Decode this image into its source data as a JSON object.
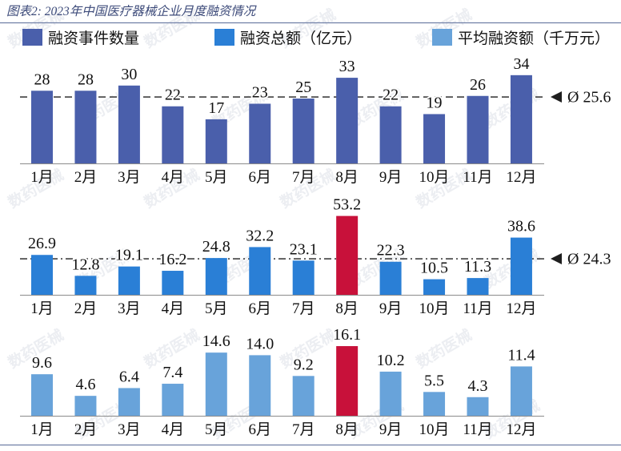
{
  "title": "图表2: 2023年中国医疗器械企业月度融资情况",
  "watermark": "数药医械",
  "legend_position": "top",
  "grid": false,
  "colors": {
    "title": "#3d4b7a",
    "divider": "#6f7fa6",
    "axis": "#8c8c8c",
    "average_line": "#1e1e1e",
    "watermark": "#eceef2"
  },
  "chart_data": [
    {
      "type": "bar",
      "name": "融资事件数量",
      "color": "#4a5fab",
      "categories": [
        "1月",
        "2月",
        "3月",
        "4月",
        "5月",
        "6月",
        "7月",
        "8月",
        "9月",
        "10月",
        "11月",
        "12月"
      ],
      "values": [
        28,
        28,
        30,
        22,
        17,
        23,
        25,
        33,
        22,
        19,
        26,
        34
      ],
      "labels": [
        "28",
        "28",
        "30",
        "22",
        "17",
        "23",
        "25",
        "33",
        "22",
        "19",
        "26",
        "34"
      ],
      "ylim": [
        0,
        40
      ],
      "average": {
        "value": 25.6,
        "label": "Ø 25.6"
      },
      "highlight": null
    },
    {
      "type": "bar",
      "name": "融资总额（亿元）",
      "color": "#2a7fd6",
      "categories": [
        "1月",
        "2月",
        "3月",
        "4月",
        "5月",
        "6月",
        "7月",
        "8月",
        "9月",
        "10月",
        "11月",
        "12月"
      ],
      "values": [
        26.9,
        12.8,
        19.1,
        16.2,
        24.8,
        32.2,
        23.1,
        53.2,
        22.3,
        10.5,
        11.3,
        38.6
      ],
      "labels": [
        "26.9",
        "12.8",
        "19.1",
        "16.2",
        "24.8",
        "32.2",
        "23.1",
        "53.2",
        "22.3",
        "10.5",
        "11.3",
        "38.6"
      ],
      "ylim": [
        0,
        60
      ],
      "average": {
        "value": 24.3,
        "label": "Ø 24.3"
      },
      "highlight": {
        "category": "8月",
        "color": "#c8113a"
      }
    },
    {
      "type": "bar",
      "name": "平均融资额（千万元）",
      "color": "#68a3da",
      "categories": [
        "1月",
        "2月",
        "3月",
        "4月",
        "5月",
        "6月",
        "7月",
        "8月",
        "9月",
        "10月",
        "11月",
        "12月"
      ],
      "values": [
        9.6,
        4.6,
        6.4,
        7.4,
        14.6,
        14.0,
        9.2,
        16.1,
        10.2,
        5.5,
        4.3,
        11.4
      ],
      "labels": [
        "9.6",
        "4.6",
        "6.4",
        "7.4",
        "14.6",
        "14.0",
        "9.2",
        "16.1",
        "10.2",
        "5.5",
        "4.3",
        "11.4"
      ],
      "ylim": [
        0,
        18
      ],
      "average": null,
      "highlight": {
        "category": "8月",
        "color": "#c8113a"
      }
    }
  ]
}
